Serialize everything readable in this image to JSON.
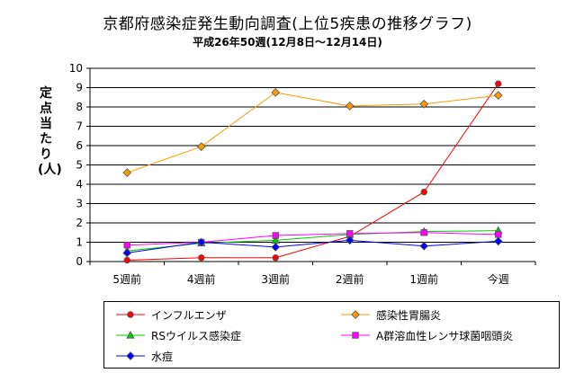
{
  "chart_data": {
    "type": "line",
    "title": "京都府感染症発生動向調査(上位5疾患の推移グラフ)",
    "subtitle": "平成26年50週(12月8日〜12月14日)",
    "ylabel": "定点当たり(人)",
    "xlabel": "",
    "categories": [
      "5週前",
      "4週前",
      "3週前",
      "2週前",
      "1週前",
      "今週"
    ],
    "yticks": [
      "0",
      "1",
      "2",
      "3",
      "4",
      "5",
      "6",
      "7",
      "8",
      "9",
      "10"
    ],
    "ylim": [
      0,
      10
    ],
    "grid": true,
    "legend_position": "bottom",
    "series": [
      {
        "name": "インフルエンザ",
        "color": "#ff0000",
        "marker": "circle",
        "values": [
          0.07,
          0.2,
          0.2,
          1.3,
          3.6,
          9.2
        ]
      },
      {
        "name": "感染性胃腸炎",
        "color": "#ff9900",
        "marker": "diamond",
        "values": [
          4.6,
          5.95,
          8.75,
          8.05,
          8.15,
          8.6
        ]
      },
      {
        "name": "RSウイルス感染症",
        "color": "#00cc00",
        "marker": "triangle",
        "values": [
          0.55,
          0.95,
          1.1,
          1.4,
          1.55,
          1.6
        ]
      },
      {
        "name": "A群溶血性レンサ球菌咽頭炎",
        "color": "#ff00ff",
        "marker": "square",
        "values": [
          0.85,
          1.0,
          1.35,
          1.45,
          1.5,
          1.4
        ]
      },
      {
        "name": "水痘",
        "color": "#0000ff",
        "marker": "diamond",
        "values": [
          0.45,
          1.0,
          0.75,
          1.1,
          0.8,
          1.05
        ]
      }
    ]
  }
}
